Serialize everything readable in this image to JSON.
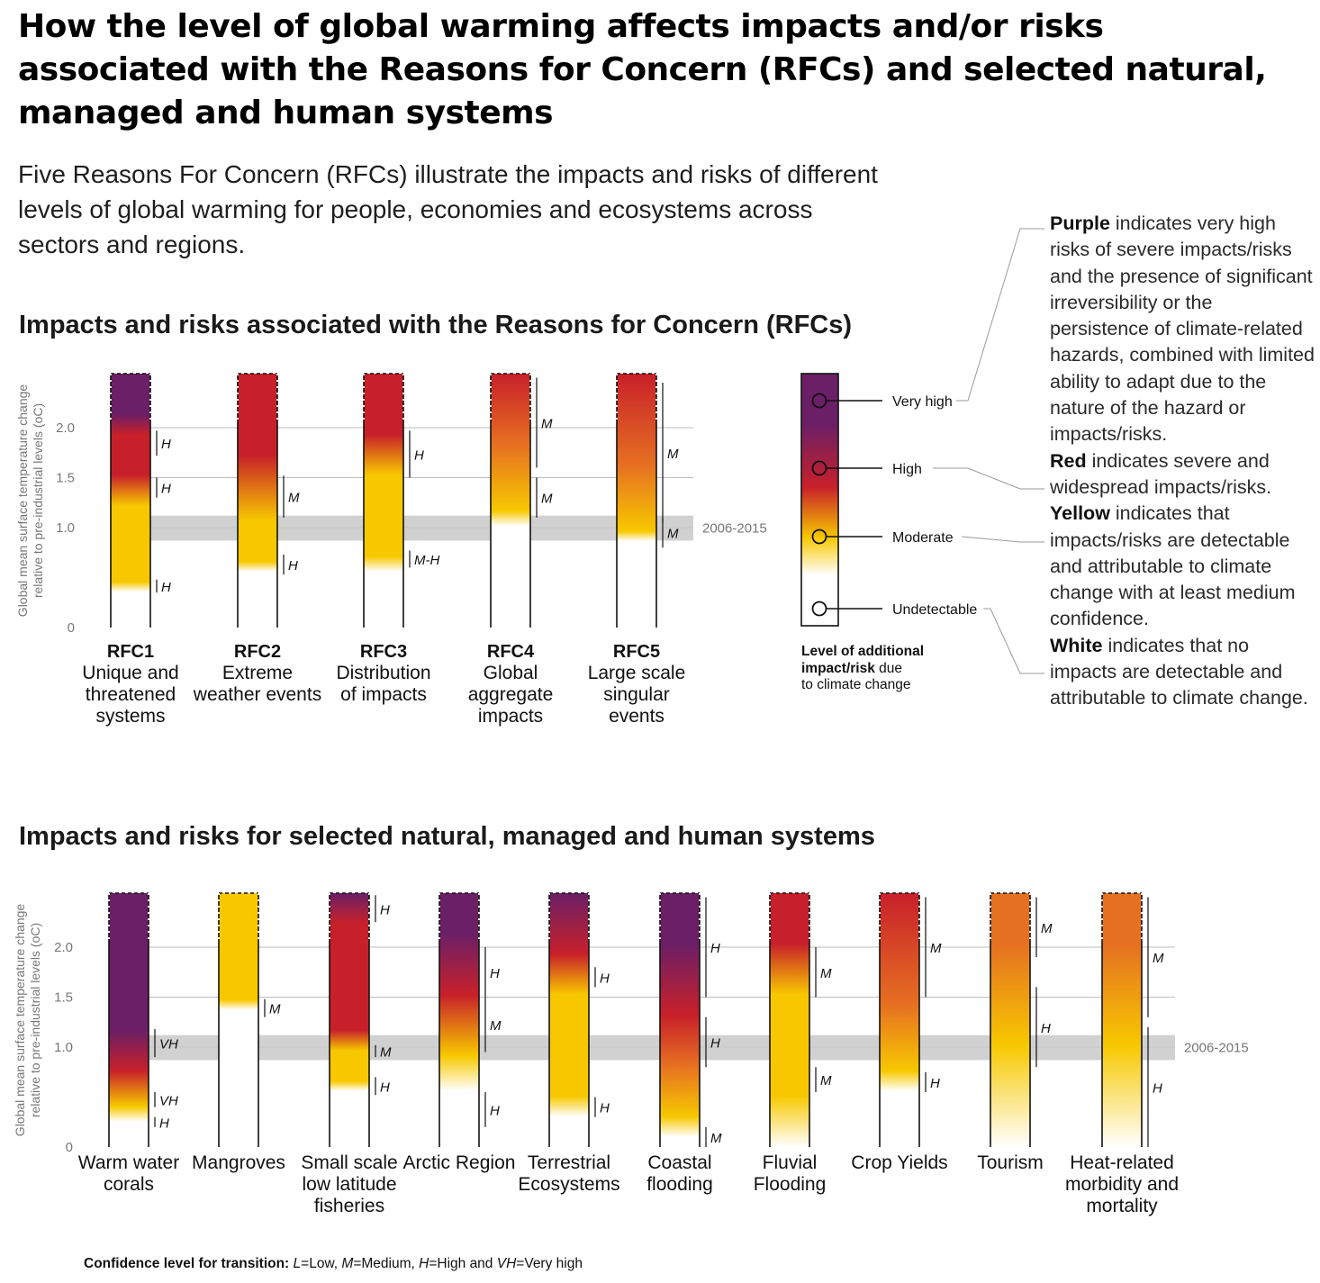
{
  "title": "How the level of global warming affects impacts and/or risks associated with the Reasons for Concern (RFCs) and selected natural, managed and human systems",
  "intro": "Five Reasons For Concern (RFCs) illustrate the impacts and risks of different levels of global warming for people, economies and ecosystems across sectors and regions.",
  "legend_text": {
    "purple_word": "Purple",
    "purple_desc": " indicates very high risks of severe impacts/risks and the presence of significant irreversibility or the persistence of climate-related hazards, combined with limited ability to adapt due to the nature of the hazard or impacts/risks.",
    "red_word": "Red",
    "red_desc": " indicates severe and widespread impacts/risks.",
    "yellow_word": "Yellow",
    "yellow_desc": " indicates that impacts/risks are detectable and attributable to climate change with at least medium confidence.",
    "white_word": "White",
    "white_desc": " indicates that no impacts are detectable and attributable to climate change."
  },
  "footnote": {
    "label": "Confidence level  for transition: ",
    "L": "L",
    "L_text": "=Low, ",
    "M": "M",
    "M_text": "=Medium, ",
    "H": "H",
    "H_text": "=High and ",
    "VH": "VH",
    "VH_text": "=Very high"
  },
  "colors": {
    "purple": "#6b1f66",
    "red": "#c8202a",
    "orange": "#e67022",
    "yellow": "#f7c800",
    "white": "#ffffff",
    "band": "#c9c9c9",
    "grid": "#bdbdbd",
    "axis_text": "#777777"
  },
  "chart_data": [
    {
      "type": "bar",
      "title": "Impacts and risks associated with the Reasons for Concern (RFCs)",
      "ylabel": "Global mean surface temperature change relative to pre-industrial levels (oC)",
      "ylim": [
        0,
        2.5
      ],
      "yticks": [
        "0",
        "1.0",
        "1.5",
        "2.0"
      ],
      "reference_band": {
        "label": "2006-2015",
        "from": 0.87,
        "to": 1.12
      },
      "bars": [
        {
          "name": "RFC1",
          "label": "Unique and threatened systems",
          "stops": [
            [
              0.35,
              "white"
            ],
            [
              0.45,
              "yellow"
            ],
            [
              1.2,
              "yellow"
            ],
            [
              1.5,
              "red"
            ],
            [
              1.9,
              "red"
            ],
            [
              2.1,
              "purple"
            ]
          ],
          "transitions": [
            {
              "from": 0.35,
              "to": 0.48,
              "conf": "H"
            },
            {
              "from": 1.3,
              "to": 1.5,
              "conf": "H"
            },
            {
              "from": 1.72,
              "to": 1.97,
              "conf": "H"
            }
          ]
        },
        {
          "name": "RFC2",
          "label": "Extreme weather events",
          "stops": [
            [
              0.55,
              "white"
            ],
            [
              0.65,
              "yellow"
            ],
            [
              1.05,
              "yellow"
            ],
            [
              1.7,
              "red"
            ]
          ],
          "transitions": [
            {
              "from": 0.53,
              "to": 0.73,
              "conf": "H"
            },
            {
              "from": 1.1,
              "to": 1.52,
              "conf": "M"
            }
          ]
        },
        {
          "name": "RFC3",
          "label": "Distribution of impacts",
          "stops": [
            [
              0.55,
              "white"
            ],
            [
              0.7,
              "yellow"
            ],
            [
              1.5,
              "yellow"
            ],
            [
              1.9,
              "red"
            ]
          ],
          "transitions": [
            {
              "from": 0.6,
              "to": 0.77,
              "conf": "M-H"
            },
            {
              "from": 1.5,
              "to": 1.97,
              "conf": "H"
            }
          ]
        },
        {
          "name": "RFC4",
          "label": "Global aggregate impacts",
          "stops": [
            [
              1.0,
              "white"
            ],
            [
              1.15,
              "yellow"
            ],
            [
              1.8,
              "orange"
            ],
            [
              2.5,
              "red"
            ]
          ],
          "transitions": [
            {
              "from": 1.1,
              "to": 1.5,
              "conf": "M"
            },
            {
              "from": 1.6,
              "to": 2.5,
              "conf": "M"
            }
          ]
        },
        {
          "name": "RFC5",
          "label": "Large scale singular events",
          "stops": [
            [
              0.85,
              "white"
            ],
            [
              0.95,
              "yellow"
            ],
            [
              1.6,
              "orange"
            ],
            [
              2.5,
              "red"
            ]
          ],
          "transitions": [
            {
              "from": 0.8,
              "to": 1.1,
              "conf": "M"
            },
            {
              "from": 1.05,
              "to": 2.45,
              "conf": "M"
            }
          ]
        }
      ],
      "legend": {
        "levels": [
          "Very high",
          "High",
          "Moderate",
          "Undetectable"
        ],
        "caption_bold": "Level of additional impact/risk",
        "caption_rest": " due to climate change",
        "caption_line1": "Level of additional",
        "caption_line2_bold": "impact/risk",
        "caption_line2_rest": " due",
        "caption_line3": "to climate change"
      }
    },
    {
      "type": "bar",
      "title": "Impacts and risks for selected natural, managed and human systems",
      "ylabel": "Global mean surface temperature change relative to pre-industrial levels (oC)",
      "ylim": [
        0,
        2.5
      ],
      "yticks": [
        "0",
        "1.0",
        "1.5",
        "2.0"
      ],
      "reference_band": {
        "label": "2006-2015",
        "from": 0.87,
        "to": 1.12
      },
      "bars": [
        {
          "name": "Warm water corals",
          "label": "Warm water corals",
          "stops": [
            [
              0.25,
              "white"
            ],
            [
              0.4,
              "yellow"
            ],
            [
              0.75,
              "red"
            ],
            [
              1.15,
              "purple"
            ]
          ],
          "transitions": [
            {
              "from": 0.2,
              "to": 0.3,
              "conf": "H"
            },
            {
              "from": 0.4,
              "to": 0.55,
              "conf": "VH"
            },
            {
              "from": 0.9,
              "to": 1.18,
              "conf": "VH"
            }
          ]
        },
        {
          "name": "Mangroves",
          "label": "Mangroves",
          "stops": [
            [
              1.35,
              "white"
            ],
            [
              1.45,
              "yellow"
            ]
          ],
          "transitions": [
            {
              "from": 1.3,
              "to": 1.48,
              "conf": "M"
            }
          ]
        },
        {
          "name": "Small scale low latitude fisheries",
          "label": "Small scale low latitude fisheries",
          "stops": [
            [
              0.55,
              "white"
            ],
            [
              0.65,
              "yellow"
            ],
            [
              0.95,
              "yellow"
            ],
            [
              1.15,
              "red"
            ],
            [
              2.2,
              "red"
            ],
            [
              2.5,
              "purple"
            ]
          ],
          "transitions": [
            {
              "from": 0.52,
              "to": 0.7,
              "conf": "H"
            },
            {
              "from": 0.9,
              "to": 1.02,
              "conf": "M"
            },
            {
              "from": 2.25,
              "to": 2.52,
              "conf": "H"
            }
          ]
        },
        {
          "name": "Arctic Region",
          "label": "Arctic Region",
          "stops": [
            [
              0.55,
              "white"
            ],
            [
              0.9,
              "yellow"
            ],
            [
              1.5,
              "red"
            ],
            [
              2.1,
              "purple"
            ]
          ],
          "transitions": [
            {
              "from": 0.2,
              "to": 0.55,
              "conf": "H"
            },
            {
              "from": 0.95,
              "to": 1.5,
              "conf": "M"
            },
            {
              "from": 1.5,
              "to": 2.0,
              "conf": "H"
            }
          ]
        },
        {
          "name": "Terrestrial Ecosystems",
          "label": "Terrestrial Ecosystems",
          "stops": [
            [
              0.3,
              "white"
            ],
            [
              0.5,
              "yellow"
            ],
            [
              1.5,
              "yellow"
            ],
            [
              1.9,
              "red"
            ],
            [
              2.5,
              "purple"
            ]
          ],
          "transitions": [
            {
              "from": 0.3,
              "to": 0.5,
              "conf": "H"
            },
            {
              "from": 1.6,
              "to": 1.8,
              "conf": "H"
            }
          ]
        },
        {
          "name": "Coastal flooding",
          "label": "Coastal flooding",
          "stops": [
            [
              0.1,
              "white"
            ],
            [
              0.3,
              "yellow"
            ],
            [
              0.8,
              "orange"
            ],
            [
              1.3,
              "red"
            ],
            [
              2.0,
              "purple"
            ]
          ],
          "transitions": [
            {
              "from": 0.0,
              "to": 0.2,
              "conf": "M"
            },
            {
              "from": 0.8,
              "to": 1.3,
              "conf": "H"
            },
            {
              "from": 1.5,
              "to": 2.5,
              "conf": "H"
            }
          ]
        },
        {
          "name": "Fluvial Flooding",
          "label": "Fluvial Flooding",
          "stops": [
            [
              0.0,
              "white"
            ],
            [
              0.5,
              "yellow"
            ],
            [
              1.5,
              "yellow"
            ],
            [
              2.0,
              "red"
            ]
          ],
          "transitions": [
            {
              "from": 0.55,
              "to": 0.8,
              "conf": "M"
            },
            {
              "from": 1.5,
              "to": 2.0,
              "conf": "M"
            }
          ]
        },
        {
          "name": "Crop Yields",
          "label": "Crop Yields",
          "stops": [
            [
              0.55,
              "white"
            ],
            [
              0.75,
              "yellow"
            ],
            [
              1.4,
              "orange"
            ],
            [
              2.5,
              "red"
            ]
          ],
          "transitions": [
            {
              "from": 0.55,
              "to": 0.75,
              "conf": "H"
            },
            {
              "from": 1.5,
              "to": 2.5,
              "conf": "M"
            }
          ]
        },
        {
          "name": "Tourism",
          "label": "Tourism",
          "stops": [
            [
              0.0,
              "white"
            ],
            [
              1.0,
              "yellow"
            ],
            [
              2.0,
              "orange"
            ]
          ],
          "transitions": [
            {
              "from": 0.8,
              "to": 1.6,
              "conf": "H"
            },
            {
              "from": 1.9,
              "to": 2.5,
              "conf": "M"
            }
          ]
        },
        {
          "name": "Heat-related morbidity and mortality",
          "label": "Heat-related morbidity and mortality",
          "stops": [
            [
              0.0,
              "white"
            ],
            [
              1.0,
              "yellow"
            ],
            [
              2.0,
              "orange"
            ]
          ],
          "transitions": [
            {
              "from": 0.0,
              "to": 1.2,
              "conf": "H"
            },
            {
              "from": 1.3,
              "to": 2.5,
              "conf": "M"
            }
          ]
        }
      ]
    }
  ]
}
